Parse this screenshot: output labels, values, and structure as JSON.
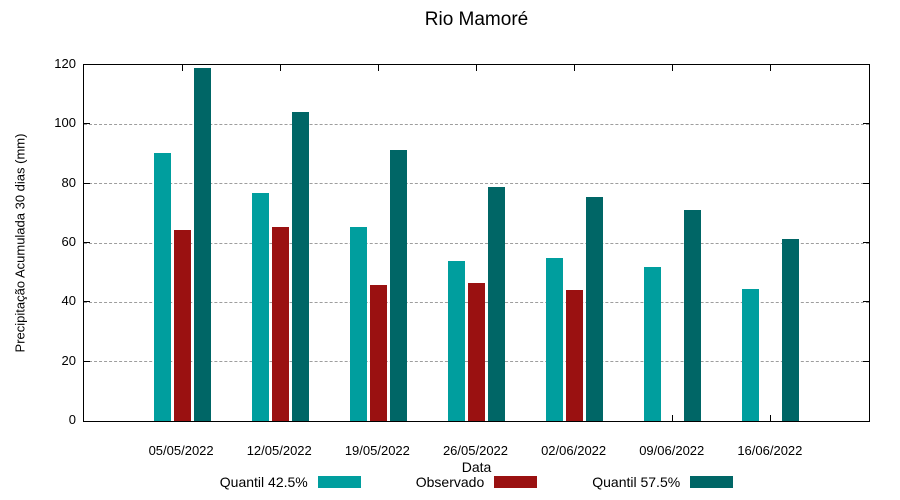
{
  "chart_data": {
    "type": "bar",
    "title": "Rio Mamoré",
    "xlabel": "Data",
    "ylabel": "Precipitação Acumulada 30 dias (mm)",
    "ylim": [
      0,
      120
    ],
    "yticks": [
      0,
      20,
      40,
      60,
      80,
      100,
      120
    ],
    "grid": "horizontal-dashed",
    "grid_color": "#9e9e9e",
    "axis_color": "#000000",
    "background_color": "#ffffff",
    "legend_position": "bottom",
    "categories": [
      "05/05/2022",
      "12/05/2022",
      "19/05/2022",
      "26/05/2022",
      "02/06/2022",
      "09/06/2022",
      "16/06/2022"
    ],
    "series": [
      {
        "name": "Quantil 42.5%",
        "color": "#009e9e",
        "values": [
          90.5,
          77,
          65.5,
          54,
          55,
          52,
          44.5
        ]
      },
      {
        "name": "Observado",
        "color": "#9a1111",
        "values": [
          64.5,
          65.5,
          46,
          46.5,
          44,
          null,
          null
        ]
      },
      {
        "name": "Quantil 57.5%",
        "color": "#006666",
        "values": [
          119,
          104,
          91.5,
          79,
          75.5,
          71,
          61.5
        ]
      }
    ]
  }
}
